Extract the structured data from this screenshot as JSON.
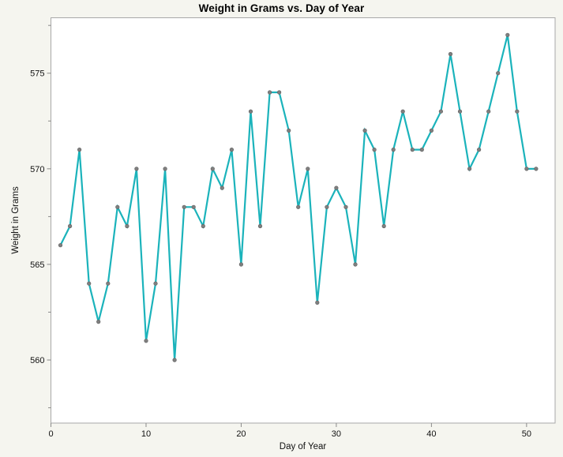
{
  "figure": {
    "title": "Weight in Grams vs. Day of Year",
    "xlabel": "Day of Year",
    "ylabel": "Weight in Grams"
  },
  "chart_data": {
    "type": "line",
    "title": "Weight in Grams vs. Day of Year",
    "xlabel": "Day of Year",
    "ylabel": "Weight in Grams",
    "x": [
      1,
      2,
      3,
      4,
      5,
      6,
      7,
      8,
      9,
      10,
      11,
      12,
      13,
      14,
      15,
      16,
      17,
      18,
      19,
      20,
      21,
      22,
      23,
      24,
      25,
      26,
      27,
      28,
      29,
      30,
      31,
      32,
      33,
      34,
      35,
      36,
      37,
      38,
      39,
      40,
      41,
      42,
      43,
      44,
      45,
      46,
      47,
      48,
      49,
      50,
      51
    ],
    "y": [
      566,
      567,
      571,
      564,
      562,
      564,
      568,
      567,
      570,
      561,
      564,
      570,
      560,
      568,
      568,
      567,
      570,
      569,
      571,
      565,
      573,
      567,
      574,
      574,
      572,
      568,
      570,
      563,
      568,
      569,
      568,
      565,
      572,
      571,
      567,
      571,
      573,
      571,
      571,
      572,
      573,
      576,
      573,
      570,
      571,
      573,
      575,
      577,
      573,
      570,
      570
    ],
    "xlim": [
      0,
      53
    ],
    "ylim": [
      556.7,
      577.9
    ],
    "xticks": [
      0,
      10,
      20,
      30,
      40,
      50
    ],
    "yticks_major": [
      560,
      565,
      570,
      575
    ],
    "yticks_minor": [
      557.5,
      562.5,
      567.5,
      572.5,
      577.5
    ],
    "grid": false,
    "legend": "none",
    "marker_shape": "circle",
    "colors": {
      "line": "#1BB3BB",
      "marker_fill": "#7F7F7F",
      "marker_stroke": "#5F5F5F",
      "background": "#F5F5EF",
      "plot_background": "#FFFFFF",
      "frame": "#A8A8A8",
      "tick": "#8A8A8A",
      "text": "#111111"
    }
  }
}
